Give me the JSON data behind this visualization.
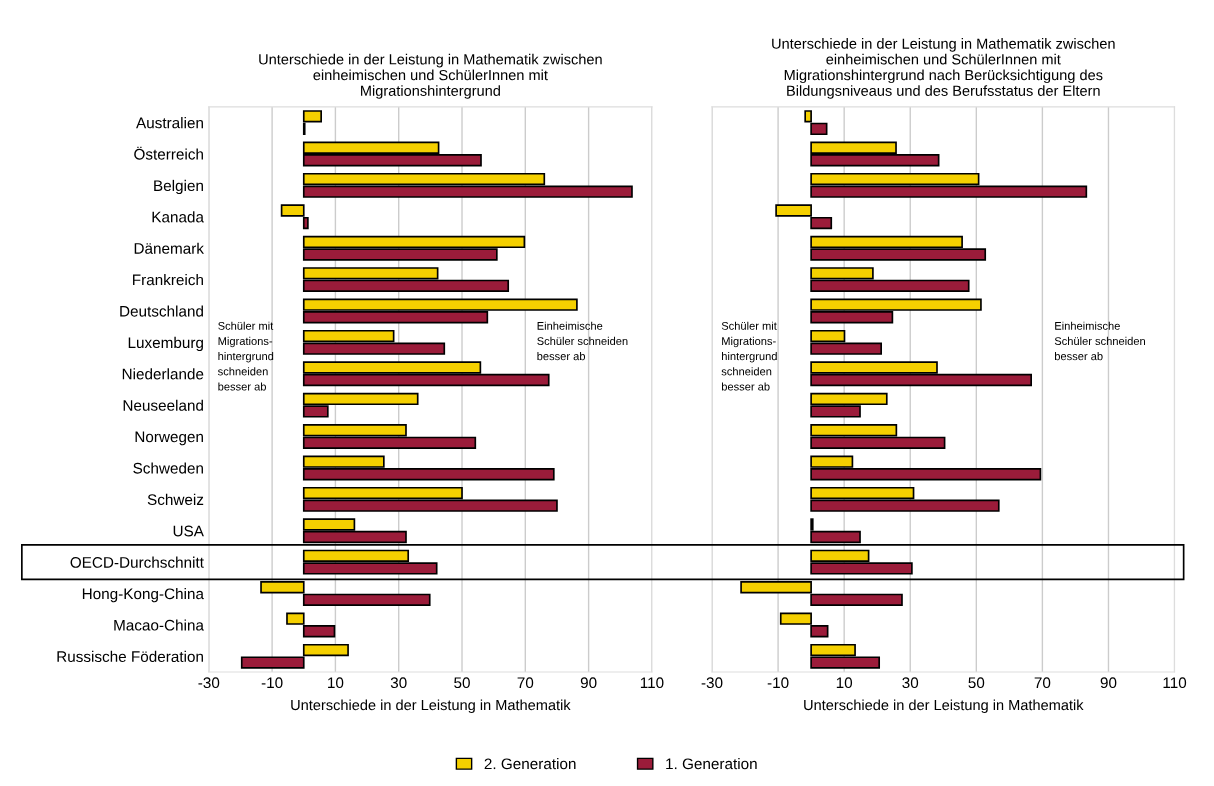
{
  "chart_data": [
    {
      "type": "bar",
      "orientation": "horizontal",
      "title": "Unterschiede in der Leistung in Mathematik zwischen\neinheimischen und SchülerInnen mit\nMigrationshintergrund",
      "xlabel": "Unterschiede in der Leistung in Mathematik",
      "categories": [
        "Australien",
        "Österreich",
        "Belgien",
        "Kanada",
        "Dänemark",
        "Frankreich",
        "Deutschland",
        "Luxemburg",
        "Niederlande",
        "Neuseeland",
        "Norwegen",
        "Schweden",
        "Schweiz",
        "USA",
        "OECD-Durchschnitt",
        "Hong-Kong-China",
        "Macao-China",
        "Russische Föderation"
      ],
      "series": [
        {
          "name": "2. Generation",
          "color": "#f5d000",
          "values": [
            5.5,
            42.6,
            76,
            -7,
            69.7,
            42.3,
            86.3,
            28.4,
            55.8,
            36,
            32.3,
            25.3,
            50,
            16,
            33,
            -13.5,
            -5.3,
            14
          ]
        },
        {
          "name": "1. Generation",
          "color": "#9b1c3a",
          "values": [
            0.3,
            56,
            103.7,
            1.3,
            61,
            64.6,
            58,
            44.4,
            77.4,
            7.6,
            54.2,
            79,
            80,
            32.3,
            42,
            39.8,
            9.7,
            -19.6
          ]
        }
      ],
      "xlim": [
        -30,
        110
      ],
      "xticks": [
        -30,
        -10,
        10,
        30,
        50,
        70,
        90,
        110
      ],
      "grid": "x",
      "legend": "bottom",
      "annotations": [
        "Schüler mit\nMigrations-\nhintergrund\nschneiden\nbesser ab",
        "Einheimische\nSchüler schneiden\nbesser ab"
      ]
    },
    {
      "type": "bar",
      "orientation": "horizontal",
      "title": "Unterschiede in der Leistung in Mathematik zwischen\neinheimischen und SchülerInnen mit\nMigrationshintergrund nach Berücksichtigung des\nBildungsniveaus und des Berufsstatus der Eltern",
      "xlabel": "Unterschiede in der Leistung in Mathematik",
      "categories": [
        null,
        null,
        null,
        null,
        null,
        null,
        null,
        null,
        null,
        null,
        null,
        null,
        null,
        null,
        null,
        null,
        null,
        null
      ],
      "series": [
        {
          "color": "#f5d000",
          "values": [
            -1.8,
            25.7,
            50.7,
            -10.6,
            45.7,
            18.7,
            51.4,
            10.1,
            38.1,
            22.9,
            25.8,
            12.5,
            31,
            0.5,
            17.4,
            -21.2,
            -9.2,
            13.3
          ]
        },
        {
          "color": "#9b1c3a",
          "values": [
            4.7,
            38.6,
            83.3,
            6.1,
            52.7,
            47.7,
            24.6,
            21.2,
            66.6,
            14.8,
            40.4,
            69.4,
            56.8,
            14.8,
            30.5,
            27.5,
            5,
            20.6
          ]
        }
      ],
      "xlim": [
        -30,
        110
      ],
      "xticks": [
        -30,
        -10,
        10,
        30,
        50,
        70,
        90,
        110
      ],
      "grid": "x",
      "tick_labels": "x",
      "annotations": [
        "Schüler mit\nMigrations-\nhintergrund\nschneiden\nbesser ab",
        "Einheimische\nSchüler schneiden\nbesser ab"
      ]
    }
  ]
}
